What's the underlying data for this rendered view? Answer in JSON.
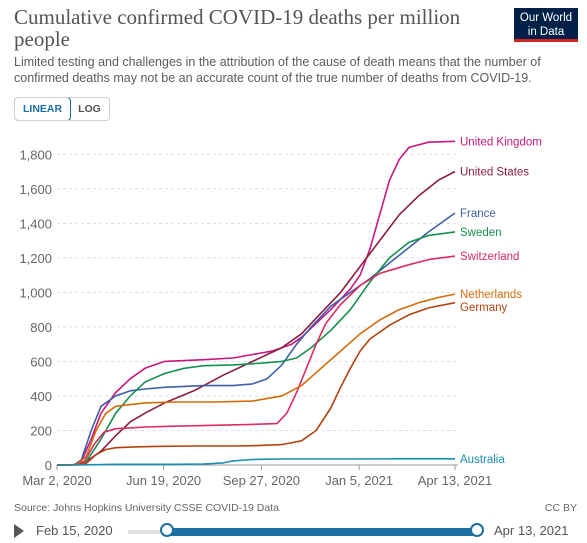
{
  "title": "Cumulative confirmed COVID-19 deaths per million people",
  "subtitle": "Limited testing and challenges in the attribution of the cause of death means that the number of confirmed deaths may not be an accurate count of the true number of deaths from COVID-19.",
  "logo": {
    "line1": "Our World",
    "line2": "in Data"
  },
  "scale_toggle": {
    "linear": "LINEAR",
    "log": "LOG",
    "selected": "LINEAR"
  },
  "source": "Source: Johns Hopkins University CSSE COVID-19 Data",
  "license": "CC BY",
  "timeline": {
    "start": "Feb 15, 2020",
    "end": "Apr 13, 2021",
    "start_fraction": 0.057,
    "end_fraction": 1.0
  },
  "colors": {
    "accent": "#1d6fa3"
  },
  "chart_data": {
    "type": "line",
    "title": "Cumulative confirmed COVID-19 deaths per million people",
    "xlabel": "",
    "ylabel": "",
    "x_ticks": [
      "Mar 2, 2020",
      "Jun 19, 2020",
      "Sep 27, 2020",
      "Jan 5, 2021",
      "Apr 13, 2021"
    ],
    "x_tick_days": [
      0,
      109,
      209,
      309,
      407
    ],
    "y_ticks": [
      0,
      200,
      400,
      600,
      800,
      1000,
      1200,
      1400,
      1600,
      1800
    ],
    "ylim": [
      0,
      1900
    ],
    "grid": "horizontal dashed",
    "legend": "labels at line ends (right)",
    "series": [
      {
        "name": "United Kingdom",
        "color": "#c8177e",
        "x": [
          0,
          18,
          25,
          35,
          45,
          60,
          75,
          90,
          110,
          150,
          180,
          200,
          220,
          240,
          250,
          265,
          280,
          300,
          310,
          320,
          330,
          340,
          350,
          360,
          380,
          407
        ],
        "y": [
          0,
          2,
          20,
          150,
          300,
          420,
          500,
          560,
          600,
          610,
          620,
          640,
          660,
          700,
          740,
          820,
          900,
          1020,
          1100,
          1250,
          1450,
          1650,
          1770,
          1840,
          1870,
          1875
        ]
      },
      {
        "name": "United States",
        "color": "#8b1e3f",
        "x": [
          0,
          20,
          30,
          45,
          60,
          75,
          90,
          110,
          140,
          170,
          200,
          230,
          250,
          270,
          290,
          310,
          330,
          350,
          370,
          390,
          407
        ],
        "y": [
          0,
          2,
          20,
          80,
          170,
          250,
          300,
          360,
          430,
          520,
          600,
          680,
          760,
          880,
          1000,
          1150,
          1300,
          1450,
          1560,
          1650,
          1700
        ]
      },
      {
        "name": "France",
        "color": "#3f5fa6",
        "x": [
          0,
          18,
          25,
          35,
          45,
          60,
          75,
          90,
          110,
          150,
          180,
          200,
          215,
          230,
          245,
          260,
          280,
          300,
          320,
          340,
          360,
          380,
          407
        ],
        "y": [
          0,
          2,
          30,
          200,
          340,
          400,
          430,
          440,
          450,
          460,
          460,
          470,
          500,
          580,
          700,
          800,
          920,
          1000,
          1080,
          1170,
          1260,
          1350,
          1460
        ]
      },
      {
        "name": "Sweden",
        "color": "#169050",
        "x": [
          0,
          20,
          30,
          45,
          60,
          75,
          90,
          110,
          130,
          150,
          180,
          210,
          230,
          245,
          260,
          280,
          300,
          320,
          340,
          360,
          380,
          407
        ],
        "y": [
          0,
          2,
          20,
          150,
          300,
          400,
          480,
          530,
          560,
          575,
          580,
          590,
          600,
          620,
          680,
          780,
          900,
          1060,
          1200,
          1290,
          1330,
          1350
        ]
      },
      {
        "name": "Switzerland",
        "color": "#da2e5e",
        "x": [
          0,
          20,
          28,
          38,
          48,
          60,
          75,
          90,
          120,
          160,
          200,
          225,
          235,
          245,
          255,
          265,
          275,
          290,
          310,
          330,
          360,
          380,
          407
        ],
        "y": [
          0,
          2,
          20,
          120,
          190,
          210,
          215,
          220,
          225,
          230,
          235,
          240,
          300,
          420,
          560,
          700,
          820,
          930,
          1040,
          1110,
          1160,
          1190,
          1210
        ]
      },
      {
        "name": "Netherlands",
        "color": "#d46b08",
        "x": [
          0,
          20,
          30,
          40,
          50,
          60,
          75,
          90,
          120,
          160,
          200,
          230,
          250,
          270,
          290,
          310,
          330,
          350,
          370,
          390,
          407
        ],
        "y": [
          0,
          2,
          50,
          200,
          300,
          340,
          350,
          360,
          365,
          365,
          370,
          400,
          460,
          560,
          660,
          760,
          840,
          900,
          940,
          970,
          990
        ]
      },
      {
        "name": "Germany",
        "color": "#b3420f",
        "x": [
          0,
          20,
          30,
          40,
          50,
          60,
          80,
          100,
          140,
          180,
          200,
          230,
          250,
          265,
          280,
          290,
          300,
          310,
          320,
          340,
          360,
          380,
          407
        ],
        "y": [
          0,
          1,
          10,
          60,
          90,
          100,
          105,
          108,
          110,
          110,
          112,
          118,
          140,
          200,
          330,
          450,
          560,
          660,
          730,
          810,
          870,
          910,
          940
        ]
      },
      {
        "name": "Australia",
        "color": "#1a8db0",
        "x": [
          0,
          20,
          30,
          40,
          60,
          90,
          120,
          150,
          170,
          180,
          200,
          230,
          260,
          300,
          350,
          407
        ],
        "y": [
          0,
          0,
          1,
          2,
          4,
          4,
          4,
          6,
          12,
          24,
          32,
          35,
          35,
          35,
          36,
          36
        ]
      }
    ]
  }
}
